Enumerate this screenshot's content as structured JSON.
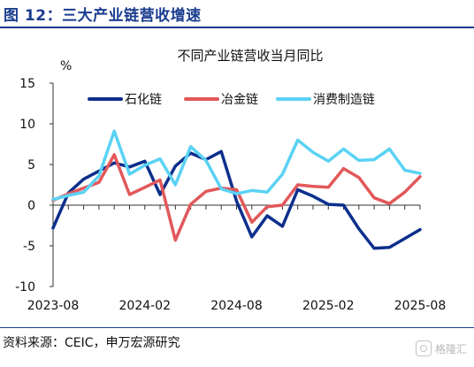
{
  "header": {
    "title": "图 12：三大产业链营收增速"
  },
  "source": "资料来源：CEIC，申万宏源研究",
  "watermark": {
    "text": "格隆汇"
  },
  "colors": {
    "accent": "#1a3d8f",
    "series": [
      "#0d2f8c",
      "#e2585a",
      "#5ad2f4"
    ]
  },
  "chart_data": {
    "type": "line",
    "title": "不同产业链营收当月同比",
    "ylabel": "%",
    "ylim": [
      -10,
      15
    ],
    "yticks": [
      -10,
      -5,
      0,
      5,
      10,
      15
    ],
    "xticks": [
      "2023-08",
      "2024-02",
      "2024-08",
      "2025-02",
      "2025-08"
    ],
    "legend": "top",
    "grid": false,
    "x": [
      "2023-08",
      "2023-09",
      "2023-10",
      "2023-11",
      "2023-12",
      "2024-01",
      "2024-02",
      "2024-03",
      "2024-04",
      "2024-05",
      "2024-06",
      "2024-07",
      "2024-08",
      "2024-09",
      "2024-10",
      "2024-11",
      "2024-12",
      "2025-01",
      "2025-02",
      "2025-03",
      "2025-04",
      "2025-05",
      "2025-06",
      "2025-07",
      "2025-08"
    ],
    "series": [
      {
        "name": "石化链",
        "color": "#0d2f8c",
        "values": [
          -2.8,
          1.5,
          3.2,
          4.2,
          5.2,
          4.7,
          5.4,
          1.3,
          4.8,
          6.4,
          5.6,
          6.6,
          0.5,
          -3.9,
          -1.3,
          -2.6,
          1.9,
          1.1,
          0.1,
          0.0,
          -2.9,
          -5.3,
          -5.2,
          -4.1,
          -3.0
        ]
      },
      {
        "name": "冶金链",
        "color": "#e2585a",
        "values": [
          0.6,
          1.4,
          2.1,
          2.8,
          6.2,
          1.3,
          2.2,
          3.1,
          -4.3,
          0.1,
          1.7,
          2.1,
          1.9,
          -2.1,
          -0.2,
          0.0,
          2.5,
          2.3,
          2.2,
          4.5,
          3.4,
          0.9,
          0.2,
          1.6,
          3.5
        ]
      },
      {
        "name": "消费制造链",
        "color": "#5ad2f4",
        "values": [
          0.7,
          1.2,
          1.6,
          3.6,
          9.1,
          3.8,
          4.9,
          5.7,
          2.5,
          7.2,
          5.5,
          2.0,
          1.4,
          1.8,
          1.6,
          3.8,
          8.0,
          6.5,
          5.4,
          6.9,
          5.5,
          5.6,
          6.9,
          4.3,
          3.9
        ]
      }
    ]
  }
}
